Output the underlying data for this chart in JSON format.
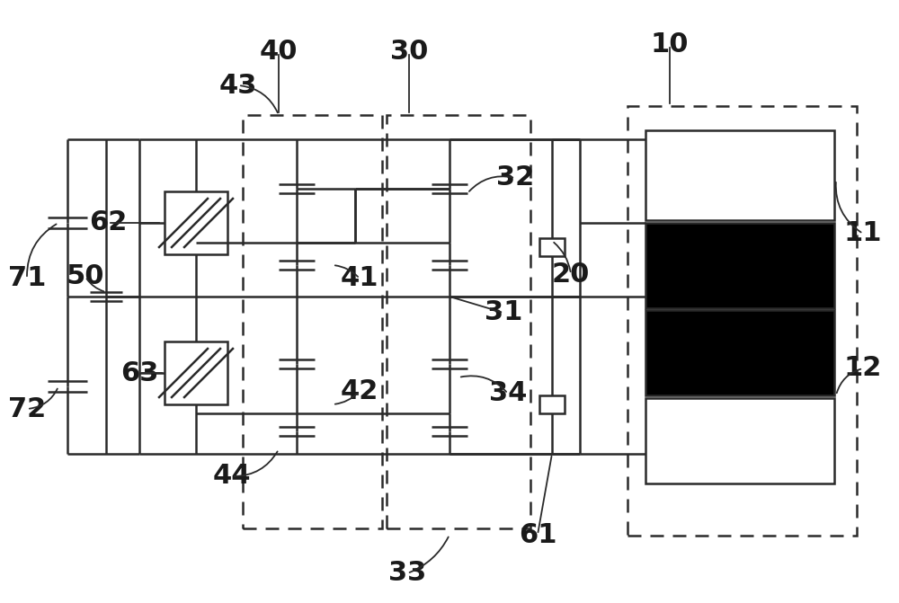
{
  "bg_color": "#ffffff",
  "lc": "#2a2a2a",
  "figsize": [
    10.0,
    6.71
  ],
  "dpi": 100
}
